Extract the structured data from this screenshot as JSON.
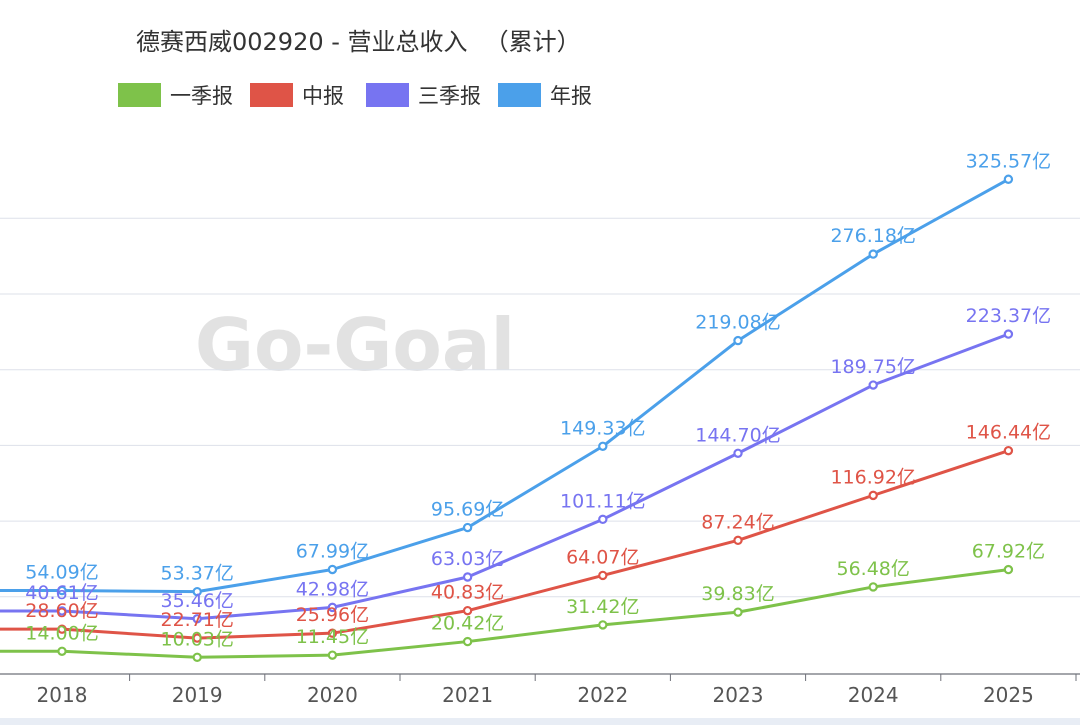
{
  "chart_data": {
    "type": "line",
    "title": "德赛西威002920 - 营业总收入",
    "title_suffix": "（累计）",
    "title_suffix_color": "#e03a2f",
    "watermark": "Go-Goal",
    "categories": [
      "2018",
      "2019",
      "2020",
      "2021",
      "2022",
      "2023",
      "2024",
      "2025"
    ],
    "value_suffix": "亿",
    "ylim": [
      0,
      350
    ],
    "grid": true,
    "legend_position": "top-left",
    "series": [
      {
        "name": "一季报",
        "color": "#7ec24a",
        "values": [
          14.0,
          10.03,
          11.45,
          20.42,
          31.42,
          39.83,
          56.48,
          67.92
        ],
        "labels": [
          "14.00亿",
          "10.03亿",
          "11.45亿",
          "20.42亿",
          "31.42亿",
          "39.83亿",
          "56.48亿",
          "67.92亿"
        ]
      },
      {
        "name": "中报",
        "color": "#df5447",
        "values": [
          28.6,
          22.71,
          25.96,
          40.83,
          64.07,
          87.24,
          116.92,
          146.44
        ],
        "labels": [
          "28.60亿",
          "22.71亿",
          "25.96亿",
          "40.83亿",
          "64.07亿",
          "87.24亿",
          "116.92亿",
          "146.44亿"
        ]
      },
      {
        "name": "三季报",
        "color": "#7774f1",
        "values": [
          40.61,
          35.46,
          42.98,
          63.03,
          101.11,
          144.7,
          189.75,
          223.37
        ],
        "labels": [
          "40.61亿",
          "35.46亿",
          "42.98亿",
          "63.03亿",
          "101.11亿",
          "144.70亿",
          "189.75亿",
          "223.37亿"
        ]
      },
      {
        "name": "年报",
        "color": "#4ba0ea",
        "values": [
          54.09,
          53.37,
          67.99,
          95.69,
          149.33,
          219.08,
          276.18,
          325.57
        ],
        "labels": [
          "54.09亿",
          "53.37亿",
          "67.99亿",
          "95.69亿",
          "149.33亿",
          "219.08亿",
          "276.18亿",
          "325.57亿"
        ]
      }
    ]
  }
}
